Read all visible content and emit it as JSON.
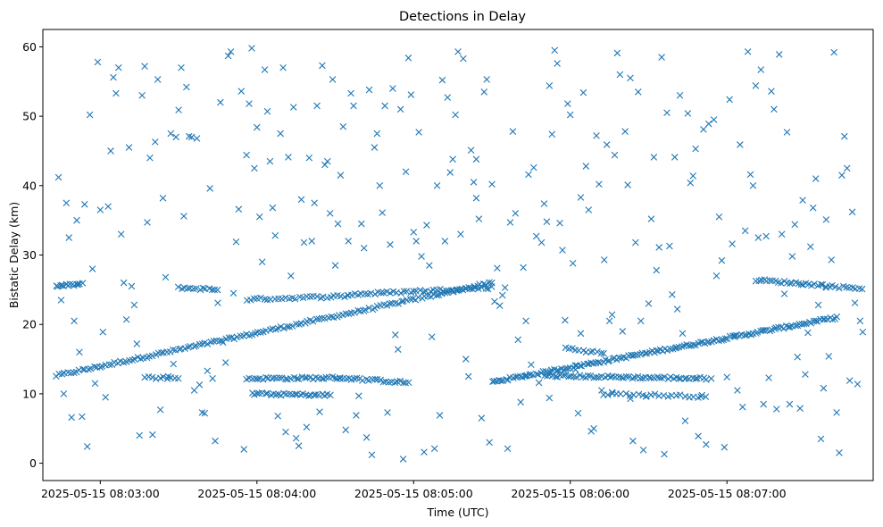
{
  "chart_data": {
    "type": "scatter",
    "title": "Detections in Delay",
    "xlabel": "Time (UTC)",
    "ylabel": "Bistatic Delay (km)",
    "marker": "x",
    "color": "#1f77b4",
    "xlim_seconds": [
      -22,
      296
    ],
    "ylim": [
      -2.5,
      62.5
    ],
    "x_ticks": [
      {
        "t": 0,
        "label": "2025-05-15 08:03:00"
      },
      {
        "t": 60,
        "label": "2025-05-15 08:04:00"
      },
      {
        "t": 120,
        "label": "2025-05-15 08:05:00"
      },
      {
        "t": 180,
        "label": "2025-05-15 08:06:00"
      },
      {
        "t": 240,
        "label": "2025-05-15 08:07:00"
      }
    ],
    "y_ticks": [
      0,
      10,
      20,
      30,
      40,
      50,
      60
    ],
    "x_reference": "2025-05-15 08:03:00 UTC (x values are seconds from this time)",
    "tracks": [
      {
        "name": "rising-track-1",
        "t0": -17,
        "t1": 150,
        "y0": 12.6,
        "y1": 26.0,
        "n": 150
      },
      {
        "name": "rising-track-2",
        "t0": 150,
        "t1": 282,
        "y0": 11.7,
        "y1": 21.0,
        "n": 150
      },
      {
        "name": "track-25-start",
        "t0": -17,
        "t1": -7,
        "y0": 25.5,
        "y1": 25.8,
        "n": 14
      },
      {
        "name": "track-25-mid",
        "t0": 30,
        "t1": 45,
        "y0": 25.3,
        "y1": 25.0,
        "n": 14
      },
      {
        "name": "track-24-a",
        "t0": 56,
        "t1": 95,
        "y0": 23.6,
        "y1": 24.1,
        "n": 30
      },
      {
        "name": "track-24-b",
        "t0": 95,
        "t1": 150,
        "y0": 24.3,
        "y1": 25.3,
        "n": 45
      },
      {
        "name": "track-12-a",
        "t0": 56,
        "t1": 92,
        "y0": 12.2,
        "y1": 12.3,
        "n": 35
      },
      {
        "name": "track-12-b",
        "t0": 92,
        "t1": 118,
        "y0": 12.3,
        "y1": 11.6,
        "n": 25
      },
      {
        "name": "track-10-a",
        "t0": 58,
        "t1": 88,
        "y0": 10.0,
        "y1": 9.8,
        "n": 30
      },
      {
        "name": "track-12-c",
        "t0": 17,
        "t1": 30,
        "y0": 12.4,
        "y1": 12.2,
        "n": 10
      },
      {
        "name": "track-16-desc",
        "t0": 178,
        "t1": 193,
        "y0": 16.6,
        "y1": 15.8,
        "n": 12
      },
      {
        "name": "track-12-d",
        "t0": 170,
        "t1": 232,
        "y0": 12.6,
        "y1": 12.2,
        "n": 60
      },
      {
        "name": "track-10-b",
        "t0": 193,
        "t1": 232,
        "y0": 10.0,
        "y1": 9.6,
        "n": 25
      },
      {
        "name": "track-26-end",
        "t0": 251,
        "t1": 278,
        "y0": 26.4,
        "y1": 25.6,
        "n": 26
      },
      {
        "name": "track-25-end",
        "t0": 278,
        "t1": 292,
        "y0": 25.5,
        "y1": 25.2,
        "n": 12
      }
    ],
    "scatter_points": [
      [
        -16,
        41.2
      ],
      [
        -14,
        10
      ],
      [
        -13,
        37.5
      ],
      [
        -12,
        32.5
      ],
      [
        -11,
        6.6
      ],
      [
        -10,
        20.5
      ],
      [
        -9,
        35
      ],
      [
        -7,
        6.7
      ],
      [
        -6,
        37.3
      ],
      [
        -5,
        2.4
      ],
      [
        -4,
        50.2
      ],
      [
        -3,
        28
      ],
      [
        -2,
        11.5
      ],
      [
        -1,
        57.8
      ],
      [
        0,
        36.5
      ],
      [
        1,
        18.9
      ],
      [
        3,
        37
      ],
      [
        4,
        45
      ],
      [
        5,
        55.6
      ],
      [
        6,
        53.3
      ],
      [
        7,
        57
      ],
      [
        8,
        33
      ],
      [
        9,
        26
      ],
      [
        10,
        20.7
      ],
      [
        11,
        45.5
      ],
      [
        12,
        25.5
      ],
      [
        14,
        17.2
      ],
      [
        15,
        4
      ],
      [
        16,
        53
      ],
      [
        17,
        57.2
      ],
      [
        18,
        34.7
      ],
      [
        19,
        44
      ],
      [
        21,
        46.3
      ],
      [
        22,
        55.3
      ],
      [
        23,
        7.7
      ],
      [
        24,
        38.2
      ],
      [
        25,
        26.8
      ],
      [
        27,
        47.5
      ],
      [
        29,
        47
      ],
      [
        30,
        50.9
      ],
      [
        31,
        57
      ],
      [
        32,
        35.6
      ],
      [
        33,
        54.2
      ],
      [
        35,
        47
      ],
      [
        37,
        46.8
      ],
      [
        40,
        7.2
      ],
      [
        41,
        13.3
      ],
      [
        42,
        39.6
      ],
      [
        43,
        12.2
      ],
      [
        44,
        3.2
      ],
      [
        46,
        52
      ],
      [
        49,
        58.7
      ],
      [
        50,
        59.3
      ],
      [
        51,
        24.5
      ],
      [
        53,
        36.6
      ],
      [
        54,
        53.6
      ],
      [
        55,
        2
      ],
      [
        56,
        44.4
      ],
      [
        57,
        51.8
      ],
      [
        58,
        59.8
      ],
      [
        59,
        42.5
      ],
      [
        60,
        48.4
      ],
      [
        61,
        35.5
      ],
      [
        62,
        29
      ],
      [
        63,
        56.7
      ],
      [
        64,
        50.7
      ],
      [
        65,
        43.5
      ],
      [
        66,
        36.8
      ],
      [
        67,
        32.8
      ],
      [
        68,
        6.8
      ],
      [
        69,
        47.5
      ],
      [
        70,
        57
      ],
      [
        71,
        4.5
      ],
      [
        73,
        27
      ],
      [
        74,
        51.3
      ],
      [
        75,
        3.6
      ],
      [
        76,
        2.5
      ],
      [
        77,
        38
      ],
      [
        78,
        31.8
      ],
      [
        79,
        5.2
      ],
      [
        80,
        44
      ],
      [
        81,
        32
      ],
      [
        82,
        37.5
      ],
      [
        83,
        51.5
      ],
      [
        84,
        7.4
      ],
      [
        85,
        57.3
      ],
      [
        86,
        43
      ],
      [
        87,
        43.5
      ],
      [
        88,
        36
      ],
      [
        89,
        55.3
      ],
      [
        90,
        28.5
      ],
      [
        91,
        34.5
      ],
      [
        92,
        41.5
      ],
      [
        93,
        48.5
      ],
      [
        94,
        4.8
      ],
      [
        95,
        32
      ],
      [
        96,
        53.3
      ],
      [
        97,
        51.5
      ],
      [
        98,
        6.9
      ],
      [
        99,
        9.7
      ],
      [
        100,
        34.5
      ],
      [
        101,
        31
      ],
      [
        102,
        3.7
      ],
      [
        103,
        53.8
      ],
      [
        104,
        1.2
      ],
      [
        105,
        45.5
      ],
      [
        106,
        47.5
      ],
      [
        107,
        40
      ],
      [
        108,
        36.1
      ],
      [
        109,
        51.5
      ],
      [
        110,
        7.3
      ],
      [
        111,
        31.5
      ],
      [
        112,
        54
      ],
      [
        113,
        18.5
      ],
      [
        114,
        16.4
      ],
      [
        115,
        51
      ],
      [
        116,
        0.6
      ],
      [
        117,
        42
      ],
      [
        118,
        58.4
      ],
      [
        119,
        53.1
      ],
      [
        120,
        33.3
      ],
      [
        121,
        32
      ],
      [
        122,
        47.7
      ],
      [
        123,
        29.8
      ],
      [
        124,
        1.6
      ],
      [
        125,
        34.3
      ],
      [
        126,
        28.5
      ],
      [
        127,
        18.2
      ],
      [
        128,
        2.1
      ],
      [
        129,
        40
      ],
      [
        130,
        6.9
      ],
      [
        131,
        55.2
      ],
      [
        132,
        32
      ],
      [
        133,
        52.7
      ],
      [
        134,
        41.9
      ],
      [
        135,
        43.8
      ],
      [
        136,
        50.2
      ],
      [
        137,
        59.3
      ],
      [
        138,
        33
      ],
      [
        139,
        58.3
      ],
      [
        140,
        15
      ],
      [
        141,
        12.5
      ],
      [
        142,
        45.1
      ],
      [
        143,
        40.5
      ],
      [
        144,
        38.2
      ],
      [
        145,
        35.2
      ],
      [
        146,
        6.5
      ],
      [
        147,
        53.5
      ],
      [
        148,
        55.3
      ],
      [
        149,
        3
      ],
      [
        150,
        40.2
      ],
      [
        151,
        23.3
      ],
      [
        152,
        28.1
      ],
      [
        153,
        22.7
      ],
      [
        154,
        24.2
      ],
      [
        155,
        25.3
      ],
      [
        156,
        2.1
      ],
      [
        157,
        34.7
      ],
      [
        158,
        47.8
      ],
      [
        159,
        36
      ],
      [
        160,
        17.8
      ],
      [
        161,
        8.8
      ],
      [
        162,
        28.2
      ],
      [
        163,
        20.5
      ],
      [
        164,
        41.6
      ],
      [
        165,
        14.2
      ],
      [
        166,
        42.6
      ],
      [
        167,
        32.7
      ],
      [
        168,
        11.6
      ],
      [
        169,
        31.8
      ],
      [
        170,
        37.4
      ],
      [
        171,
        34.8
      ],
      [
        172,
        54.4
      ],
      [
        173,
        47.4
      ],
      [
        174,
        59.5
      ],
      [
        175,
        57.6
      ],
      [
        176,
        34.6
      ],
      [
        177,
        30.7
      ],
      [
        178,
        20.6
      ],
      [
        179,
        51.8
      ],
      [
        180,
        50.2
      ],
      [
        181,
        28.8
      ],
      [
        182,
        13.5
      ],
      [
        183,
        7.2
      ],
      [
        184,
        38.3
      ],
      [
        185,
        53.4
      ],
      [
        186,
        42.8
      ],
      [
        187,
        36.5
      ],
      [
        188,
        4.6
      ],
      [
        189,
        5
      ],
      [
        190,
        47.2
      ],
      [
        191,
        40.2
      ],
      [
        192,
        10.5
      ],
      [
        193,
        29.3
      ],
      [
        194,
        45.9
      ],
      [
        195,
        20.5
      ],
      [
        196,
        21.4
      ],
      [
        197,
        44.4
      ],
      [
        198,
        59.1
      ],
      [
        199,
        56
      ],
      [
        200,
        19
      ],
      [
        201,
        47.8
      ],
      [
        202,
        40.1
      ],
      [
        203,
        55.5
      ],
      [
        204,
        3.2
      ],
      [
        205,
        31.8
      ],
      [
        206,
        53.5
      ],
      [
        207,
        20.5
      ],
      [
        208,
        1.9
      ],
      [
        209,
        9.6
      ],
      [
        210,
        23
      ],
      [
        211,
        35.2
      ],
      [
        212,
        44.1
      ],
      [
        213,
        27.8
      ],
      [
        214,
        31.1
      ],
      [
        215,
        58.5
      ],
      [
        216,
        1.3
      ],
      [
        217,
        50.5
      ],
      [
        218,
        31.3
      ],
      [
        219,
        24.3
      ],
      [
        220,
        44.1
      ],
      [
        221,
        22.2
      ],
      [
        222,
        53
      ],
      [
        223,
        18.7
      ],
      [
        224,
        6.1
      ],
      [
        225,
        50.4
      ],
      [
        226,
        40.4
      ],
      [
        227,
        41.4
      ],
      [
        228,
        45.3
      ],
      [
        229,
        3.9
      ],
      [
        230,
        9.6
      ],
      [
        231,
        48.1
      ],
      [
        232,
        2.7
      ],
      [
        233,
        48.9
      ],
      [
        234,
        12.2
      ],
      [
        235,
        49.5
      ],
      [
        236,
        27
      ],
      [
        237,
        35.5
      ],
      [
        238,
        29.2
      ],
      [
        239,
        2.3
      ],
      [
        240,
        12.4
      ],
      [
        241,
        52.4
      ],
      [
        242,
        31.6
      ],
      [
        243,
        18.2
      ],
      [
        244,
        10.5
      ],
      [
        245,
        45.9
      ],
      [
        246,
        8.1
      ],
      [
        247,
        33.5
      ],
      [
        248,
        59.3
      ],
      [
        249,
        41.6
      ],
      [
        250,
        40
      ],
      [
        251,
        54.4
      ],
      [
        252,
        32.5
      ],
      [
        253,
        56.7
      ],
      [
        254,
        8.5
      ],
      [
        255,
        32.7
      ],
      [
        256,
        12.3
      ],
      [
        257,
        53.6
      ],
      [
        258,
        51
      ],
      [
        259,
        7.8
      ],
      [
        260,
        58.9
      ],
      [
        261,
        33
      ],
      [
        262,
        24.4
      ],
      [
        263,
        47.7
      ],
      [
        264,
        8.5
      ],
      [
        265,
        29.8
      ],
      [
        266,
        34.4
      ],
      [
        267,
        15.3
      ],
      [
        268,
        7.9
      ],
      [
        269,
        37.9
      ],
      [
        270,
        12.8
      ],
      [
        271,
        18.8
      ],
      [
        272,
        31.2
      ],
      [
        273,
        36.8
      ],
      [
        274,
        41
      ],
      [
        275,
        22.8
      ],
      [
        276,
        3.5
      ],
      [
        277,
        10.8
      ],
      [
        278,
        35.1
      ],
      [
        279,
        15.4
      ],
      [
        280,
        29.3
      ],
      [
        281,
        59.2
      ],
      [
        282,
        7.3
      ],
      [
        283,
        1.5
      ],
      [
        284,
        41.5
      ],
      [
        285,
        47.1
      ],
      [
        286,
        42.5
      ],
      [
        287,
        11.9
      ],
      [
        288,
        36.2
      ],
      [
        289,
        23.1
      ],
      [
        290,
        11.4
      ],
      [
        291,
        20.5
      ],
      [
        292,
        18.9
      ],
      [
        -15,
        23.5
      ],
      [
        -8,
        16
      ],
      [
        2,
        9.5
      ],
      [
        13,
        22.8
      ],
      [
        20,
        4.1
      ],
      [
        26,
        12.5
      ],
      [
        28,
        14.3
      ],
      [
        34,
        47.1
      ],
      [
        36,
        10.5
      ],
      [
        38,
        11.3
      ],
      [
        39,
        7.3
      ],
      [
        45,
        23.1
      ],
      [
        47,
        17.4
      ],
      [
        48,
        14.5
      ],
      [
        52,
        31.9
      ],
      [
        72,
        44.1
      ],
      [
        144,
        43.8
      ],
      [
        163,
        12.6
      ],
      [
        172,
        9.4
      ],
      [
        184,
        18.7
      ],
      [
        196,
        10.2
      ],
      [
        203,
        9.3
      ]
    ]
  }
}
